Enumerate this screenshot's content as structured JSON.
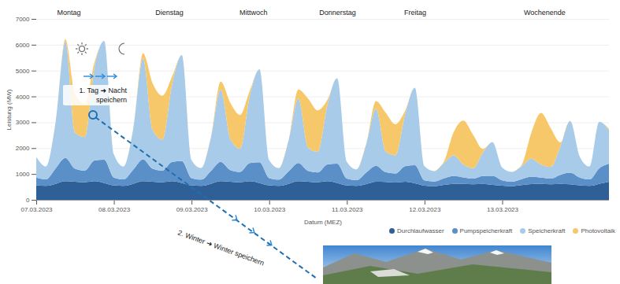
{
  "chart_data": {
    "type": "area",
    "stacked": true,
    "x_label": "Datum (MEZ)",
    "y_label": "Leistung (MW)",
    "xlim": [
      0,
      177
    ],
    "xticks": [
      {
        "value": 0,
        "label": "07.03.2023"
      },
      {
        "value": 24,
        "label": "08.03.2023"
      },
      {
        "value": 48,
        "label": "09.03.2023"
      },
      {
        "value": 72,
        "label": "10.03.2023"
      },
      {
        "value": 96,
        "label": "11.03.2023"
      },
      {
        "value": 120,
        "label": "12.03.2023"
      },
      {
        "value": 144,
        "label": "13.03.2023"
      }
    ],
    "ylim": [
      0,
      7000
    ],
    "yticks": [
      0,
      1000,
      2000,
      3000,
      4000,
      5000,
      6000,
      7000
    ],
    "grid": true,
    "legend": "bottom",
    "x": [
      0,
      3,
      6,
      9,
      12,
      15,
      18,
      21,
      24,
      27,
      30,
      33,
      36,
      39,
      42,
      45,
      48,
      51,
      54,
      57,
      60,
      63,
      66,
      69,
      72,
      75,
      78,
      81,
      84,
      87,
      90,
      93,
      96,
      99,
      102,
      105,
      108,
      111,
      114,
      117,
      120,
      123,
      126,
      129,
      132,
      135,
      138,
      141,
      144,
      147,
      150,
      153,
      156,
      159,
      162,
      165,
      168,
      171,
      174,
      177
    ],
    "series": [
      {
        "name": "Durchlaufwasser",
        "color": "#2f5f97",
        "values": [
          560,
          540,
          620,
          720,
          700,
          680,
          720,
          650,
          560,
          540,
          620,
          720,
          700,
          680,
          720,
          650,
          560,
          540,
          620,
          720,
          700,
          680,
          720,
          650,
          560,
          540,
          620,
          720,
          700,
          680,
          720,
          650,
          560,
          540,
          610,
          700,
          690,
          670,
          700,
          640,
          550,
          530,
          580,
          620,
          620,
          600,
          620,
          580,
          550,
          530,
          570,
          610,
          620,
          600,
          620,
          600,
          560,
          540,
          620,
          700
        ]
      },
      {
        "name": "Pumpspeicherkraft",
        "color": "#5b8fc7",
        "values": [
          300,
          250,
          600,
          900,
          500,
          450,
          800,
          900,
          300,
          250,
          550,
          850,
          500,
          450,
          750,
          850,
          280,
          240,
          500,
          750,
          450,
          400,
          700,
          800,
          280,
          240,
          480,
          700,
          420,
          380,
          650,
          750,
          260,
          220,
          450,
          620,
          380,
          350,
          600,
          700,
          200,
          180,
          250,
          300,
          250,
          220,
          300,
          350,
          200,
          170,
          230,
          280,
          240,
          220,
          350,
          450,
          300,
          250,
          600,
          700
        ]
      },
      {
        "name": "Speicherkraft",
        "color": "#a9cbea",
        "values": [
          800,
          500,
          1800,
          4500,
          1400,
          1300,
          3600,
          4600,
          900,
          500,
          1600,
          3900,
          1500,
          1200,
          3000,
          4100,
          700,
          450,
          1300,
          2800,
          1200,
          900,
          2600,
          3600,
          700,
          450,
          1200,
          2500,
          900,
          800,
          2300,
          3300,
          650,
          420,
          1100,
          2200,
          800,
          700,
          2000,
          3000,
          550,
          400,
          600,
          800,
          500,
          400,
          900,
          1300,
          500,
          380,
          500,
          700,
          500,
          450,
          1100,
          2000,
          800,
          500,
          1800,
          1300
        ]
      },
      {
        "name": "Photovoltaik",
        "color": "#f7c86a",
        "values": [
          0,
          0,
          0,
          100,
          1500,
          1300,
          200,
          0,
          0,
          0,
          0,
          200,
          1800,
          1700,
          300,
          0,
          0,
          0,
          0,
          300,
          1400,
          1300,
          200,
          0,
          0,
          0,
          0,
          350,
          1900,
          1600,
          200,
          0,
          0,
          0,
          0,
          300,
          1500,
          1200,
          150,
          0,
          0,
          0,
          50,
          900,
          1700,
          1300,
          150,
          0,
          0,
          0,
          50,
          1000,
          2000,
          1500,
          150,
          0,
          0,
          0,
          0,
          50
        ]
      }
    ],
    "day_labels": [
      {
        "label": "Montag",
        "x": 10
      },
      {
        "label": "Dienstag",
        "x": 41
      },
      {
        "label": "Mittwoch",
        "x": 67
      },
      {
        "label": "Donnerstag",
        "x": 93
      },
      {
        "label": "Freitag",
        "x": 117
      },
      {
        "label": "Wochenende",
        "x": 157
      }
    ],
    "annotations": [
      "1. Tag ➜ Nacht speichern",
      "2. Winter ➜ Winter speichern"
    ]
  }
}
